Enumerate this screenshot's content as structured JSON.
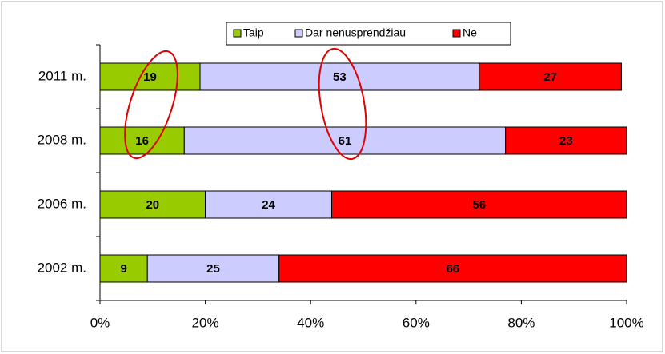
{
  "chart_data": {
    "type": "bar",
    "orientation": "horizontal",
    "stacked": true,
    "categories": [
      "2011 m.",
      "2008 m.",
      "2006 m.",
      "2002 m."
    ],
    "series": [
      {
        "name": "Taip",
        "color": "#99cc00",
        "values": [
          19,
          16,
          20,
          9
        ]
      },
      {
        "name": "Dar nenusprendžiau",
        "color": "#ccccff",
        "values": [
          53,
          61,
          24,
          25
        ]
      },
      {
        "name": "Ne",
        "color": "#ff0000",
        "values": [
          27,
          23,
          56,
          66
        ]
      }
    ],
    "xlim": [
      0,
      100
    ],
    "xticks": [
      {
        "value": 0,
        "label": "0%"
      },
      {
        "value": 20,
        "label": "20%"
      },
      {
        "value": 40,
        "label": "40%"
      },
      {
        "value": 60,
        "label": "60%"
      },
      {
        "value": 80,
        "label": "80%"
      },
      {
        "value": 100,
        "label": "100%"
      }
    ],
    "legend": "top"
  }
}
